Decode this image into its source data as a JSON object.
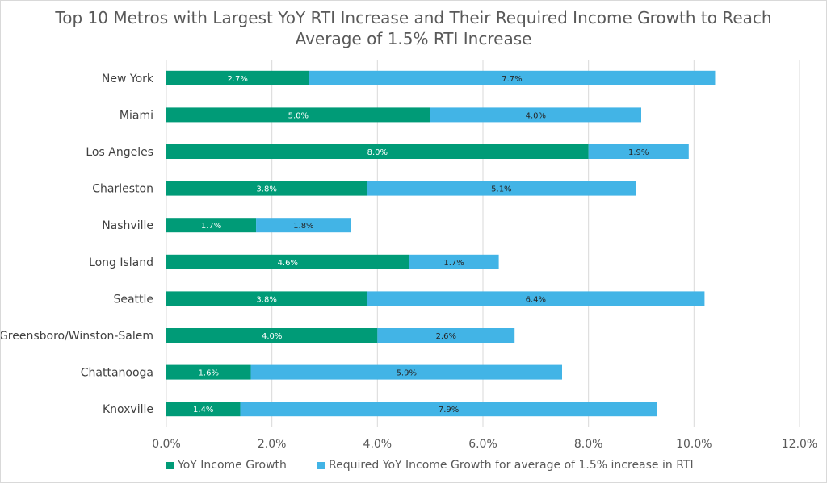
{
  "chart_data": {
    "type": "bar",
    "orientation": "horizontal",
    "stacked": true,
    "title_lines": [
      "Top 10 Metros with Largest YoY RTI Increase and Their Required Income Growth to Reach",
      "Average of 1.5% RTI Increase"
    ],
    "categories": [
      "New York",
      "Miami",
      "Los Angeles",
      "Charleston",
      "Nashville",
      "Long Island",
      "Seattle",
      "Greensboro/Winston-Salem",
      "Chattanooga",
      "Knoxville"
    ],
    "series": [
      {
        "name": "YoY Income Growth",
        "color": "#009b77",
        "label_color": "#ffffff",
        "values": [
          2.7,
          5.0,
          8.0,
          3.8,
          1.7,
          4.6,
          3.8,
          4.0,
          1.6,
          1.4
        ],
        "labels": [
          "2.7%",
          "5.0%",
          "8.0%",
          "3.8%",
          "1.7%",
          "4.6%",
          "3.8%",
          "4.0%",
          "1.6%",
          "1.4%"
        ]
      },
      {
        "name": "Required YoY Income Growth for average of 1.5% increase in RTI",
        "color": "#42b4e6",
        "label_color": "#262626",
        "values": [
          7.7,
          4.0,
          1.9,
          5.1,
          1.8,
          1.7,
          6.4,
          2.6,
          5.9,
          7.9
        ],
        "labels": [
          "7.7%",
          "4.0%",
          "1.9%",
          "5.1%",
          "1.8%",
          "1.7%",
          "6.4%",
          "2.6%",
          "5.9%",
          "7.9%"
        ]
      }
    ],
    "x_axis": {
      "min": 0,
      "max": 12,
      "step": 2,
      "tick_labels": [
        "0.0%",
        "2.0%",
        "4.0%",
        "6.0%",
        "8.0%",
        "10.0%",
        "12.0%"
      ]
    },
    "grid": true,
    "legend_position": "bottom",
    "colors": {
      "gridline": "#d9d9d9",
      "text": "#595959"
    }
  }
}
